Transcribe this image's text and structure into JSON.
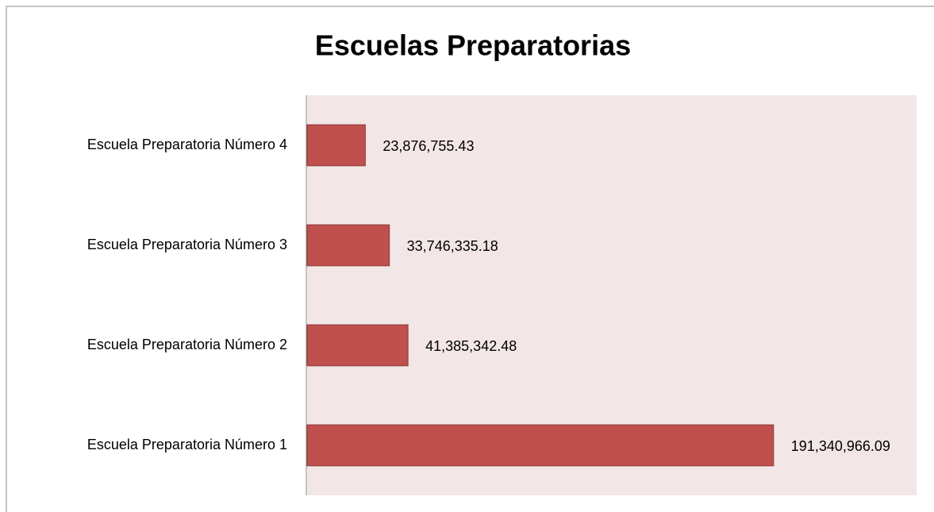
{
  "chart_data": {
    "type": "bar",
    "orientation": "horizontal",
    "title": "Escuelas Preparatorias",
    "categories": [
      "Escuela Preparatoria Número 1",
      "Escuela Preparatoria Número 2",
      "Escuela Preparatoria Número 3",
      "Escuela Preparatoria Número 4"
    ],
    "values": [
      191340966.09,
      41385342.48,
      33746335.18,
      23876755.43
    ],
    "value_labels": [
      "191,340,966.09",
      "41,385,342.48",
      "33,746,335.18",
      "23,876,755.43"
    ],
    "color": "#c0504d",
    "xlim": [
      0,
      250000000
    ]
  }
}
